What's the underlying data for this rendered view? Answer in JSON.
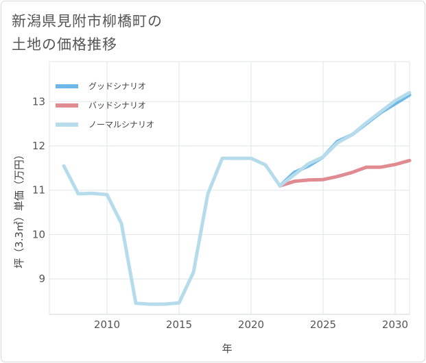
{
  "title_lines": [
    "新潟県見附市柳橋町の",
    "土地の価格推移"
  ],
  "chart_data": {
    "type": "line",
    "title": "新潟県見附市柳橋町の土地の価格推移",
    "xlabel": "年",
    "ylabel": "坪（3.3㎡）単価（万円）",
    "xlim": [
      2006,
      2031
    ],
    "ylim": [
      8.2,
      13.9
    ],
    "x_ticks": [
      2010,
      2015,
      2020,
      2025,
      2030
    ],
    "y_ticks": [
      9,
      10,
      11,
      12,
      13
    ],
    "grid": true,
    "legend_position": "top-left",
    "series": [
      {
        "name": "グッドシナリオ",
        "color": "#6cb8ea",
        "x": [
          2022,
          2023,
          2024,
          2025,
          2026,
          2027,
          2028,
          2029,
          2030,
          2031
        ],
        "y": [
          11.1,
          11.4,
          11.55,
          11.75,
          12.1,
          12.25,
          12.5,
          12.75,
          12.95,
          13.15
        ]
      },
      {
        "name": "バッドシナリオ",
        "color": "#e08a92",
        "x": [
          2022,
          2023,
          2024,
          2025,
          2026,
          2027,
          2028,
          2029,
          2030,
          2031
        ],
        "y": [
          11.1,
          11.2,
          11.23,
          11.24,
          11.31,
          11.4,
          11.52,
          11.52,
          11.58,
          11.67
        ]
      },
      {
        "name": "ノーマルシナリオ",
        "color": "#b6dcec",
        "x": [
          2007,
          2008,
          2009,
          2010,
          2011,
          2012,
          2013,
          2014,
          2015,
          2016,
          2017,
          2018,
          2019,
          2020,
          2021,
          2022,
          2023,
          2024,
          2025,
          2026,
          2027,
          2028,
          2029,
          2030,
          2031
        ],
        "y": [
          11.55,
          10.92,
          10.93,
          10.9,
          10.25,
          8.45,
          8.43,
          8.43,
          8.46,
          9.15,
          10.92,
          11.72,
          11.72,
          11.72,
          11.57,
          11.1,
          11.35,
          11.6,
          11.75,
          12.07,
          12.25,
          12.52,
          12.77,
          13.02,
          13.2
        ]
      }
    ]
  }
}
